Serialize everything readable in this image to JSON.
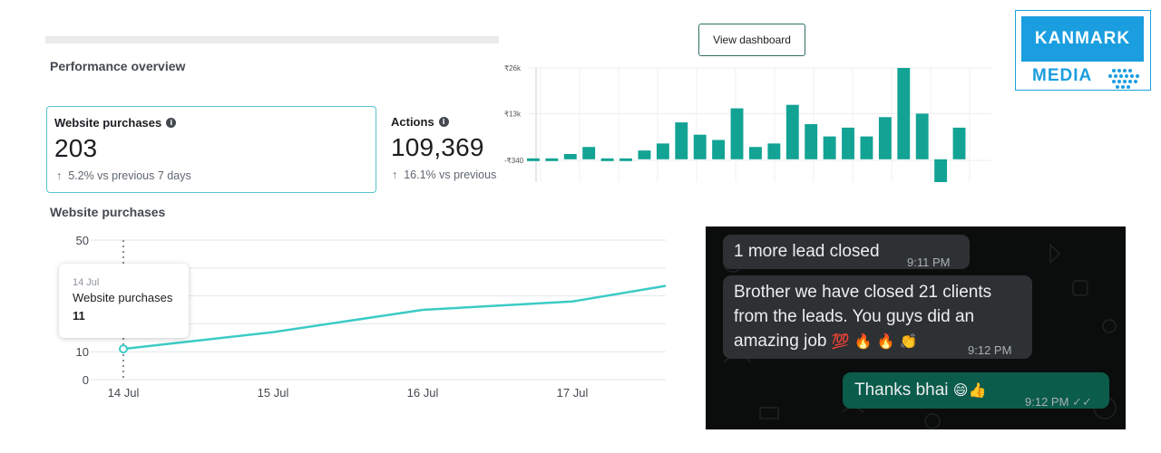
{
  "performance": {
    "title": "Performance overview",
    "cards": [
      {
        "label": "Website purchases",
        "value": "203",
        "delta": "5.2% vs previous 7 days"
      },
      {
        "label": "Actions",
        "value": "109,369",
        "delta": "16.1% vs previous"
      }
    ]
  },
  "line_panel": {
    "title": "Website purchases",
    "tooltip": {
      "date": "14 Jul",
      "metric": "Website purchases",
      "value": "11"
    }
  },
  "dashboard": {
    "button_label": "View dashboard"
  },
  "chart_data": [
    {
      "type": "line",
      "title": "Website purchases",
      "x": [
        "14 Jul",
        "15 Jul",
        "16 Jul",
        "17 Jul",
        "18 Jul"
      ],
      "xticks": [
        "14 Jul",
        "15 Jul",
        "16 Jul",
        "17 Jul"
      ],
      "y": [
        11,
        17,
        25,
        28,
        37
      ],
      "yticks": [
        0,
        10,
        50
      ],
      "ylim": [
        0,
        50
      ],
      "grid": true,
      "color": "#3ccbc6"
    },
    {
      "type": "bar",
      "ytick_labels": [
        "₹26k",
        "₹13k",
        "-₹340"
      ],
      "yticks": [
        26000,
        13000,
        -340
      ],
      "values": [
        -340,
        -340,
        1500,
        3500,
        -340,
        -340,
        2500,
        4500,
        10500,
        7000,
        5500,
        14500,
        3500,
        4500,
        15500,
        10000,
        6500,
        9000,
        6500,
        12000,
        26000,
        13000,
        -6500,
        9000
      ],
      "ylim": [
        -6500,
        26000
      ],
      "grid": true,
      "color": "#12a394"
    }
  ],
  "logo": {
    "top": "KANMARK",
    "bottom": "MEDIA"
  },
  "chat": {
    "messages": [
      {
        "text": "1 more lead closed",
        "time": "9:11 PM",
        "direction": "incoming"
      },
      {
        "lines": [
          "Brother we have closed 21 clients",
          "from the leads. You guys did an",
          "amazing job"
        ],
        "emoji": "💯 🔥 🔥 👏",
        "time": "9:12 PM",
        "direction": "incoming"
      },
      {
        "text": "Thanks bhai",
        "emoji": "😄👍",
        "time": "9:12 PM",
        "direction": "outgoing"
      }
    ]
  }
}
